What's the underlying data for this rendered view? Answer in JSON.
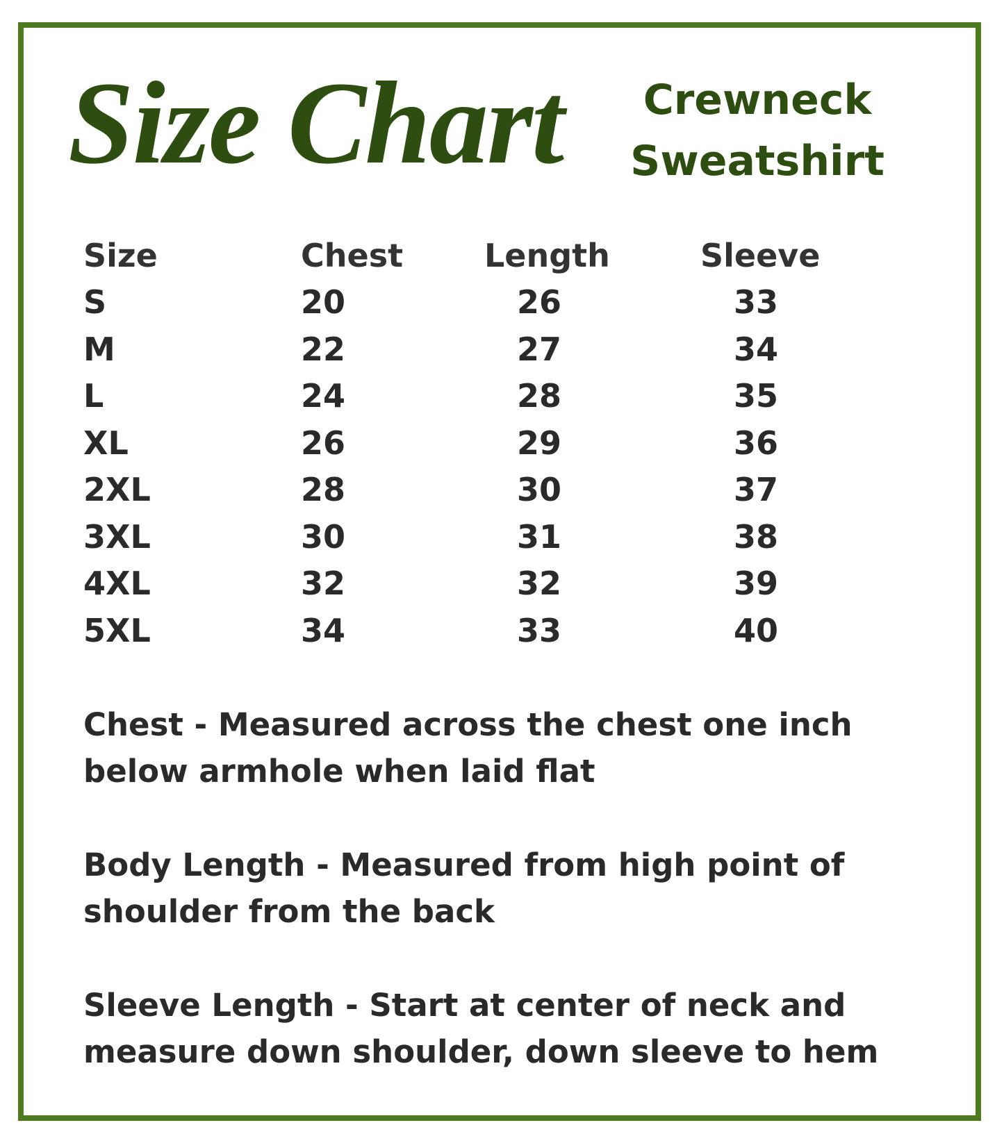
{
  "title": "Size Chart",
  "subtitle_lines": [
    "Crewneck",
    "Sweatshirt"
  ],
  "colors": {
    "border": "#4f7a22",
    "title": "#2e4d10",
    "text": "#2a2a2a"
  },
  "table": {
    "headers": [
      "Size",
      "Chest",
      "Length",
      "Sleeve"
    ],
    "rows": [
      [
        "S",
        "20",
        "26",
        "33"
      ],
      [
        "M",
        "22",
        "27",
        "34"
      ],
      [
        "L",
        "24",
        "28",
        "35"
      ],
      [
        "XL",
        "26",
        "29",
        "36"
      ],
      [
        "2XL",
        "28",
        "30",
        "37"
      ],
      [
        "3XL",
        "30",
        "31",
        "38"
      ],
      [
        "4XL",
        "32",
        "32",
        "39"
      ],
      [
        "5XL",
        "34",
        "33",
        "40"
      ]
    ]
  },
  "notes": [
    "Chest - Measured across the chest one inch below armhole when laid flat",
    "Body Length - Measured from high point of shoulder from the back",
    "Sleeve Length - Start at center of neck and measure down shoulder, down sleeve to hem"
  ]
}
